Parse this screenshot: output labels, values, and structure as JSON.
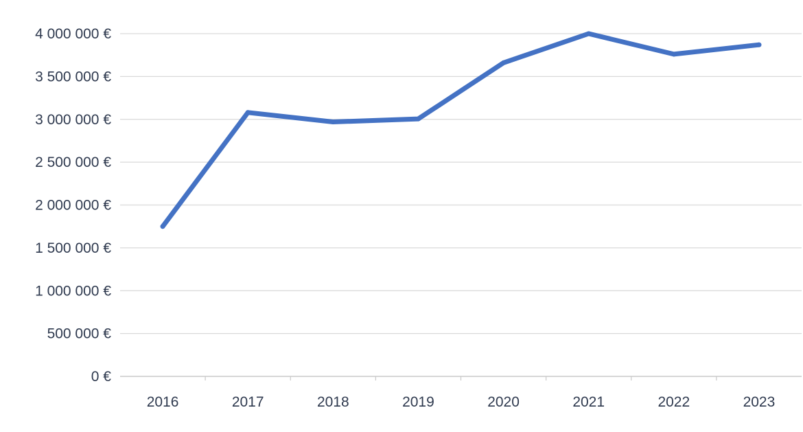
{
  "chart_data": {
    "type": "line",
    "categories": [
      "2016",
      "2017",
      "2018",
      "2019",
      "2020",
      "2021",
      "2022",
      "2023"
    ],
    "series": [
      {
        "values": [
          1750000,
          3080000,
          2970000,
          3005000,
          3660000,
          4000000,
          3760000,
          3870000
        ]
      }
    ],
    "ylim": [
      0,
      4000000
    ],
    "y_ticks": [
      0,
      500000,
      1000000,
      1500000,
      2000000,
      2500000,
      3000000,
      3500000,
      4000000
    ],
    "y_tick_labels": [
      "0 €",
      "500 000 €",
      "1 000 000 €",
      "1 500 000 €",
      "2 000 000 €",
      "2 500 000 €",
      "3 000 000 €",
      "3 500 000 €",
      "4 000 000 €"
    ],
    "title": "",
    "xlabel": "",
    "ylabel": "",
    "grid": true,
    "legend": "none",
    "colors": {
      "line": "#4472C4",
      "grid": "#d9d9d9",
      "text": "#2f3a4f"
    }
  }
}
